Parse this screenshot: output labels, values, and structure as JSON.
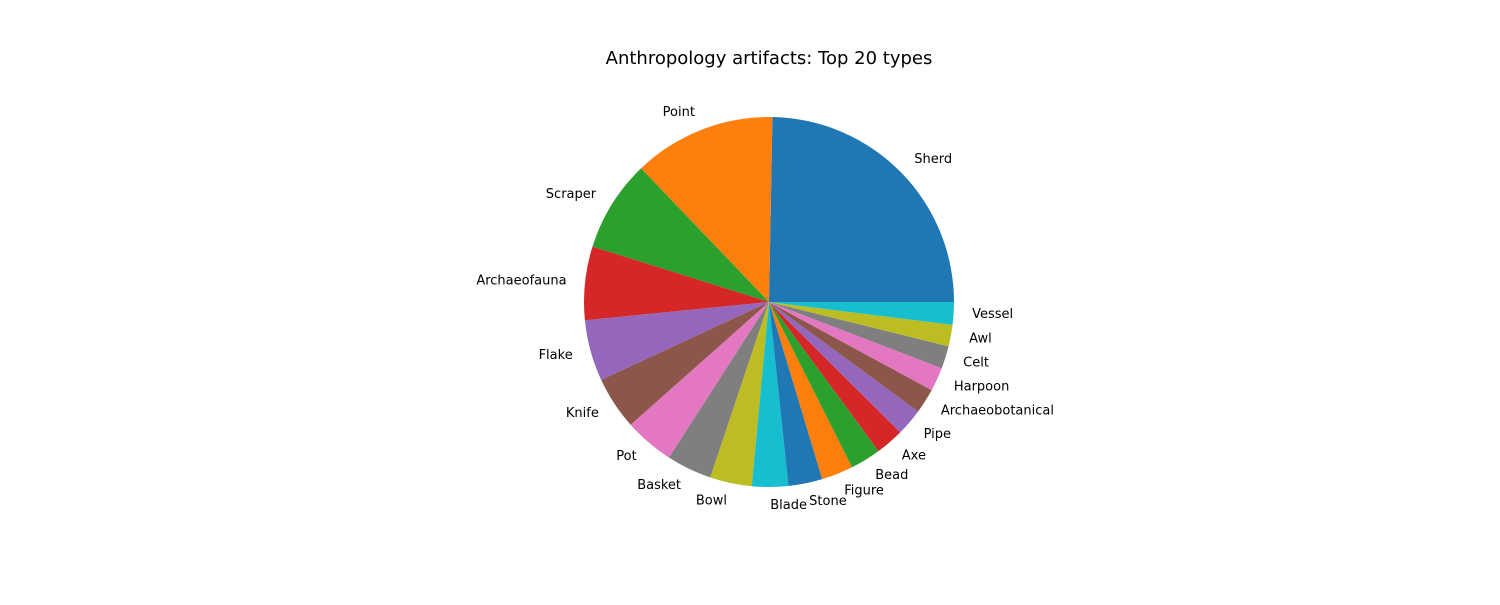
{
  "chart_data": {
    "type": "pie",
    "title": "Anthropology artifacts: Top 20 types",
    "start_angle_deg": 0,
    "direction": "counterclockwise",
    "slices": [
      {
        "label": "Sherd",
        "value": 25.0,
        "color": "#1f77b4"
      },
      {
        "label": "Point",
        "value": 12.6,
        "color": "#ff7f0e"
      },
      {
        "label": "Scraper",
        "value": 8.1,
        "color": "#2ca02c"
      },
      {
        "label": "Archaeofauna",
        "value": 6.5,
        "color": "#d62728"
      },
      {
        "label": "Flake",
        "value": 5.4,
        "color": "#9467bd"
      },
      {
        "label": "Knife",
        "value": 4.7,
        "color": "#8c564b"
      },
      {
        "label": "Pot",
        "value": 4.4,
        "color": "#e377c2"
      },
      {
        "label": "Basket",
        "value": 4.0,
        "color": "#7f7f7f"
      },
      {
        "label": "Bowl",
        "value": 3.7,
        "color": "#bcbd22"
      },
      {
        "label": "Blade",
        "value": 3.2,
        "color": "#17becf"
      },
      {
        "label": "Stone",
        "value": 3.0,
        "color": "#1f77b4"
      },
      {
        "label": "Figure",
        "value": 2.8,
        "color": "#ff7f0e"
      },
      {
        "label": "Bead",
        "value": 2.7,
        "color": "#2ca02c"
      },
      {
        "label": "Axe",
        "value": 2.5,
        "color": "#d62728"
      },
      {
        "label": "Pipe",
        "value": 2.4,
        "color": "#9467bd"
      },
      {
        "label": "Archaeobotanical",
        "value": 2.2,
        "color": "#8c564b"
      },
      {
        "label": "Harpoon",
        "value": 2.1,
        "color": "#e377c2"
      },
      {
        "label": "Celt",
        "value": 2.0,
        "color": "#7f7f7f"
      },
      {
        "label": "Awl",
        "value": 1.9,
        "color": "#bcbd22"
      },
      {
        "label": "Vessel",
        "value": 2.0,
        "color": "#17becf"
      }
    ]
  }
}
